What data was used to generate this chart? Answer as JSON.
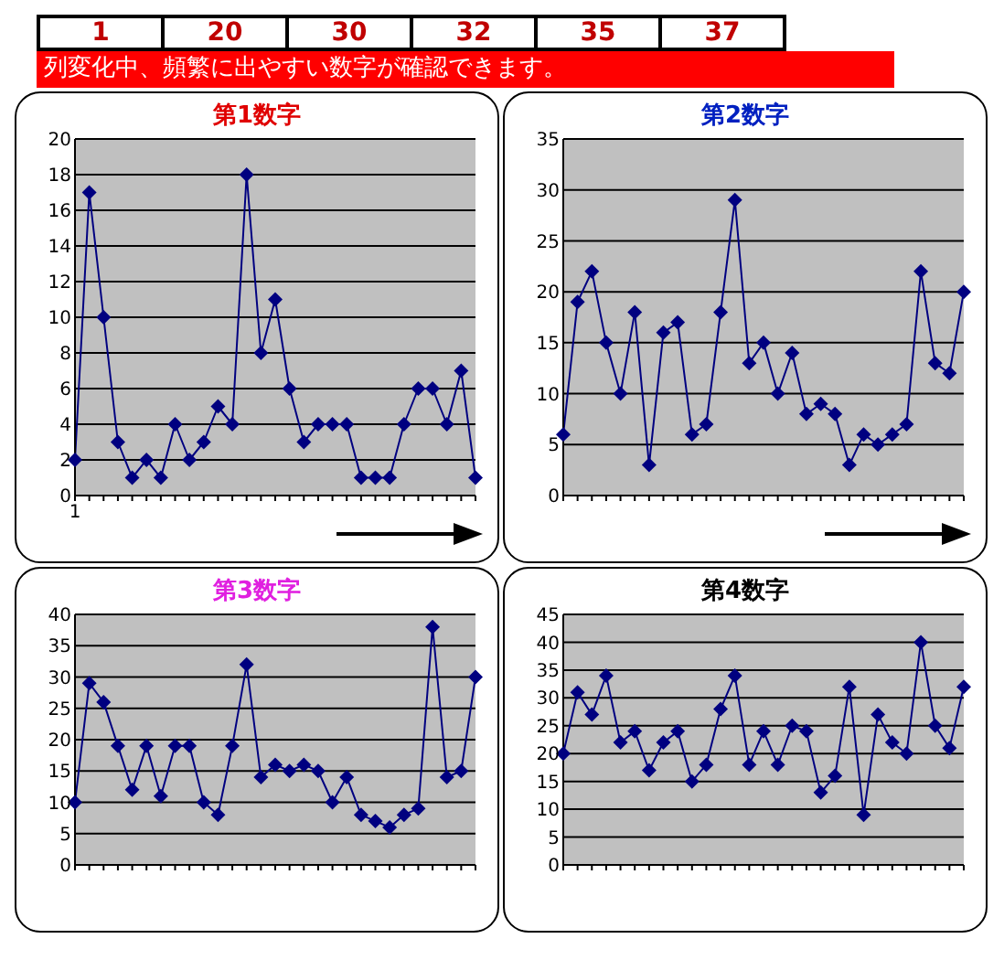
{
  "chart_data": [
    {
      "type": "other",
      "annotations": [
        "1",
        "20",
        "30",
        "32",
        "35",
        "37",
        "列変化中、頻繁に出やすい数字が確認できます。"
      ]
    },
    {
      "type": "line",
      "title": "第1数字",
      "categories": [
        "1",
        null,
        null,
        null,
        null,
        null,
        null,
        null,
        null,
        null,
        null,
        null,
        null,
        null,
        null,
        null,
        null,
        null,
        null,
        null,
        null,
        null,
        null,
        null,
        null,
        null,
        null,
        null,
        null
      ],
      "series": [
        {
          "color": "#000080",
          "values": [
            2,
            17,
            10,
            3,
            1,
            2,
            1,
            4,
            2,
            3,
            5,
            4,
            18,
            8,
            11,
            6,
            3,
            4,
            4,
            4,
            1,
            1,
            1,
            4,
            6,
            6,
            4,
            7,
            1
          ]
        }
      ],
      "ylim": [
        0,
        20
      ],
      "yticks": [
        0,
        2,
        4,
        6,
        8,
        10,
        12,
        14,
        16,
        18,
        20
      ],
      "grid": "y",
      "marker": "diamond",
      "legend": false
    },
    {
      "type": "line",
      "title": "第2数字",
      "categories": [
        null,
        null,
        null,
        null,
        null,
        null,
        null,
        null,
        null,
        null,
        null,
        null,
        null,
        null,
        null,
        null,
        null,
        null,
        null,
        null,
        null,
        null,
        null,
        null,
        null,
        null,
        null,
        null,
        null
      ],
      "series": [
        {
          "color": "#000080",
          "values": [
            6,
            19,
            22,
            15,
            10,
            18,
            3,
            16,
            17,
            6,
            7,
            18,
            29,
            13,
            15,
            10,
            14,
            8,
            9,
            8,
            3,
            6,
            5,
            6,
            7,
            22,
            13,
            12,
            20
          ]
        }
      ],
      "ylim": [
        0,
        35
      ],
      "yticks": [
        0,
        5,
        10,
        15,
        20,
        25,
        30,
        35
      ],
      "grid": "y",
      "marker": "diamond",
      "legend": false,
      "tick_labels": "y"
    },
    {
      "type": "line",
      "title": "第3数字",
      "categories": [
        null,
        null,
        null,
        null,
        null,
        null,
        null,
        null,
        null,
        null,
        null,
        null,
        null,
        null,
        null,
        null,
        null,
        null,
        null,
        null,
        null,
        null,
        null,
        null,
        null,
        null,
        null,
        null,
        null
      ],
      "series": [
        {
          "color": "#000080",
          "values": [
            10,
            29,
            26,
            19,
            12,
            19,
            11,
            19,
            19,
            10,
            8,
            19,
            32,
            14,
            16,
            15,
            16,
            15,
            10,
            14,
            8,
            7,
            6,
            8,
            9,
            38,
            14,
            15,
            30
          ]
        }
      ],
      "ylim": [
        0,
        40
      ],
      "yticks": [
        0,
        5,
        10,
        15,
        20,
        25,
        30,
        35,
        40
      ],
      "grid": "y",
      "marker": "diamond",
      "legend": false,
      "tick_labels": "y"
    },
    {
      "type": "line",
      "title": "第4数字",
      "categories": [
        null,
        null,
        null,
        null,
        null,
        null,
        null,
        null,
        null,
        null,
        null,
        null,
        null,
        null,
        null,
        null,
        null,
        null,
        null,
        null,
        null,
        null,
        null,
        null,
        null,
        null,
        null,
        null,
        null
      ],
      "series": [
        {
          "color": "#000080",
          "values": [
            20,
            31,
            27,
            34,
            22,
            24,
            17,
            22,
            24,
            15,
            18,
            28,
            34,
            18,
            24,
            18,
            25,
            24,
            13,
            16,
            32,
            9,
            27,
            22,
            20,
            40,
            25,
            21,
            32
          ]
        }
      ],
      "ylim": [
        0,
        45
      ],
      "yticks": [
        0,
        5,
        10,
        15,
        20,
        25,
        30,
        35,
        40,
        45
      ],
      "grid": "y",
      "marker": "diamond",
      "legend": false,
      "tick_labels": "y"
    }
  ]
}
